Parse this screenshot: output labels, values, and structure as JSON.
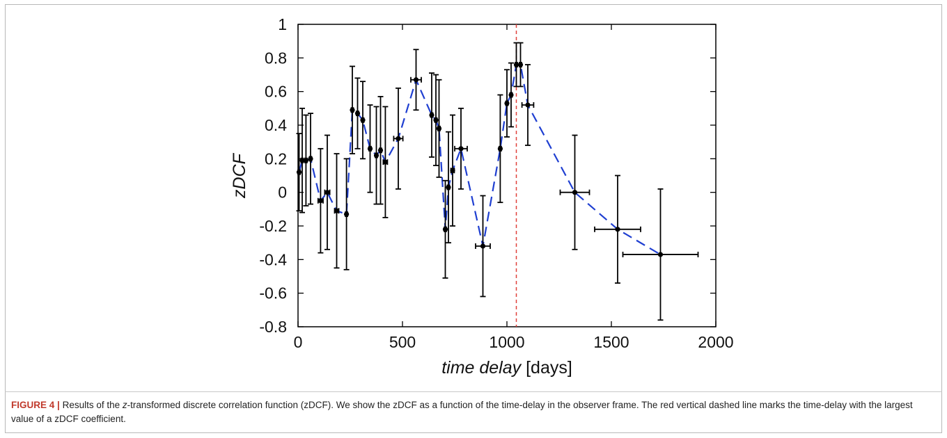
{
  "chart_data": {
    "type": "scatter",
    "xlabel_italic": "time delay",
    "xlabel_unit": "[days]",
    "ylabel": "zDCF",
    "xlim": [
      0,
      2000
    ],
    "ylim": [
      -0.8,
      1.0
    ],
    "xticks": [
      0,
      500,
      1000,
      1500,
      2000
    ],
    "yticks": [
      -0.8,
      -0.6,
      -0.4,
      -0.2,
      0,
      0.2,
      0.4,
      0.6,
      0.8,
      1
    ],
    "grid": false,
    "marker_line": {
      "x": 1045,
      "color": "#e0413a",
      "style": "dashed"
    },
    "fit_line": {
      "color": "#1f3fd1",
      "style": "dashed"
    },
    "points": [
      {
        "x": 5,
        "y": 0.12,
        "xerr": 5,
        "yerr": 0.23
      },
      {
        "x": 20,
        "y": 0.19,
        "xerr": 5,
        "yerr": 0.31
      },
      {
        "x": 38,
        "y": 0.19,
        "xerr": 5,
        "yerr": 0.27
      },
      {
        "x": 60,
        "y": 0.2,
        "xerr": 5,
        "yerr": 0.27
      },
      {
        "x": 108,
        "y": -0.05,
        "xerr": 12,
        "yerr": 0.31
      },
      {
        "x": 140,
        "y": 0.0,
        "xerr": 12,
        "yerr": 0.34
      },
      {
        "x": 185,
        "y": -0.11,
        "xerr": 10,
        "yerr": 0.34
      },
      {
        "x": 232,
        "y": -0.13,
        "xerr": 5,
        "yerr": 0.33
      },
      {
        "x": 260,
        "y": 0.49,
        "xerr": 5,
        "yerr": 0.26
      },
      {
        "x": 285,
        "y": 0.47,
        "xerr": 5,
        "yerr": 0.21
      },
      {
        "x": 310,
        "y": 0.43,
        "xerr": 5,
        "yerr": 0.23
      },
      {
        "x": 345,
        "y": 0.26,
        "xerr": 5,
        "yerr": 0.26
      },
      {
        "x": 375,
        "y": 0.22,
        "xerr": 5,
        "yerr": 0.29
      },
      {
        "x": 395,
        "y": 0.25,
        "xerr": 5,
        "yerr": 0.32
      },
      {
        "x": 418,
        "y": 0.18,
        "xerr": 10,
        "yerr": 0.33
      },
      {
        "x": 480,
        "y": 0.32,
        "xerr": 22,
        "yerr": 0.3
      },
      {
        "x": 565,
        "y": 0.67,
        "xerr": 25,
        "yerr": 0.18
      },
      {
        "x": 640,
        "y": 0.46,
        "xerr": 5,
        "yerr": 0.25
      },
      {
        "x": 660,
        "y": 0.43,
        "xerr": 5,
        "yerr": 0.27
      },
      {
        "x": 675,
        "y": 0.38,
        "xerr": 5,
        "yerr": 0.29
      },
      {
        "x": 705,
        "y": -0.22,
        "xerr": 5,
        "yerr": 0.29
      },
      {
        "x": 720,
        "y": 0.03,
        "xerr": 5,
        "yerr": 0.33
      },
      {
        "x": 740,
        "y": 0.13,
        "xerr": 8,
        "yerr": 0.33
      },
      {
        "x": 780,
        "y": 0.26,
        "xerr": 30,
        "yerr": 0.24
      },
      {
        "x": 885,
        "y": -0.32,
        "xerr": 35,
        "yerr": 0.3
      },
      {
        "x": 968,
        "y": 0.26,
        "xerr": 5,
        "yerr": 0.32
      },
      {
        "x": 1000,
        "y": 0.53,
        "xerr": 5,
        "yerr": 0.2
      },
      {
        "x": 1020,
        "y": 0.58,
        "xerr": 5,
        "yerr": 0.19
      },
      {
        "x": 1045,
        "y": 0.76,
        "xerr": 5,
        "yerr": 0.13
      },
      {
        "x": 1065,
        "y": 0.76,
        "xerr": 5,
        "yerr": 0.13
      },
      {
        "x": 1100,
        "y": 0.52,
        "xerr": 28,
        "yerr": 0.24
      },
      {
        "x": 1325,
        "y": 0.0,
        "xerr": 70,
        "yerr": 0.34
      },
      {
        "x": 1530,
        "y": -0.22,
        "xerr": 110,
        "yerr": 0.32
      },
      {
        "x": 1735,
        "y": -0.37,
        "xerr": 180,
        "yerr": 0.39
      }
    ]
  },
  "caption": {
    "figure_label": "FIGURE 4",
    "separator": "|",
    "text_before_italic": "Results of the ",
    "italic": "z",
    "text_after_italic": "-transformed discrete correlation function (zDCF). We show the zDCF as a function of the time-delay in the observer frame. The red vertical dashed line marks the time-delay with the largest value of a zDCF coefficient."
  }
}
